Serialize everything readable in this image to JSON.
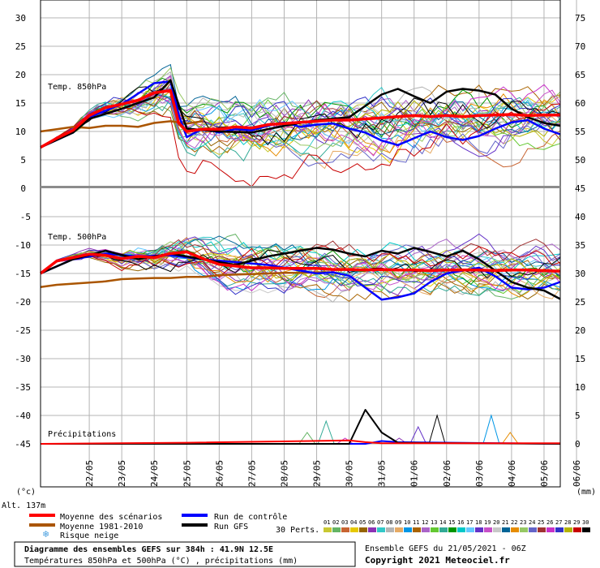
{
  "chart_data": {
    "type": "line",
    "upper_panel": {
      "title": "Temp. 850hPa",
      "left_ticks": [
        "30",
        "25",
        "20",
        "15",
        "10",
        "5",
        "0"
      ],
      "right_ticks": [
        "75",
        "70",
        "65",
        "60",
        "55",
        "50",
        "45"
      ],
      "ylim": [
        0,
        33
      ]
    },
    "lower_panel": {
      "title": "Temp. 500hPa",
      "precip_title": "Précipitations",
      "left_ticks": [
        "-5",
        "-10",
        "-15",
        "-20",
        "-25",
        "-30",
        "-35",
        "-40",
        "-45"
      ],
      "right_ticks": [
        "40",
        "35",
        "30",
        "25",
        "20",
        "15",
        "10",
        "5",
        "0"
      ],
      "ylim": [
        -50,
        0
      ]
    },
    "x_labels": [
      "22/05",
      "23/05",
      "24/05",
      "25/05",
      "26/05",
      "27/05",
      "28/05",
      "29/05",
      "30/05",
      "31/05",
      "01/06",
      "02/06",
      "03/06",
      "04/06",
      "05/06",
      "06/06"
    ],
    "x_label_hours": [
      42,
      66,
      90,
      114,
      138,
      162,
      186,
      210,
      234,
      258,
      282,
      306,
      330,
      354,
      378,
      402
    ],
    "x_range_hours": [
      6,
      390
    ],
    "unit_left": "(°c)",
    "unit_right": "(mm)",
    "altitude": "Alt. 137m",
    "series": [
      {
        "name": "Moyenne des scénarios",
        "color": "#ff0000",
        "t850": [
          [
            6,
            7.2
          ],
          [
            18,
            8.8
          ],
          [
            30,
            10.2
          ],
          [
            42,
            12.8
          ],
          [
            54,
            14.2
          ],
          [
            66,
            14.8
          ],
          [
            78,
            15.5
          ],
          [
            90,
            16.8
          ],
          [
            102,
            17.2
          ],
          [
            108,
            11.5
          ],
          [
            114,
            10.0
          ],
          [
            126,
            10.4
          ],
          [
            138,
            10.4
          ],
          [
            150,
            10.8
          ],
          [
            162,
            10.6
          ],
          [
            174,
            11.2
          ],
          [
            186,
            11.4
          ],
          [
            198,
            11.6
          ],
          [
            210,
            11.8
          ],
          [
            222,
            12.0
          ],
          [
            234,
            12.0
          ],
          [
            246,
            12.2
          ],
          [
            258,
            12.4
          ],
          [
            270,
            12.6
          ],
          [
            282,
            12.8
          ],
          [
            294,
            12.6
          ],
          [
            306,
            12.8
          ],
          [
            318,
            12.6
          ],
          [
            330,
            12.8
          ],
          [
            342,
            12.9
          ],
          [
            354,
            13.0
          ],
          [
            366,
            12.8
          ],
          [
            378,
            12.9
          ],
          [
            390,
            12.9
          ]
        ],
        "t500": [
          [
            6,
            -15.0
          ],
          [
            18,
            -12.8
          ],
          [
            30,
            -12.2
          ],
          [
            42,
            -11.6
          ],
          [
            54,
            -11.8
          ],
          [
            66,
            -12.4
          ],
          [
            78,
            -12.0
          ],
          [
            90,
            -12.2
          ],
          [
            102,
            -11.5
          ],
          [
            114,
            -11.2
          ],
          [
            126,
            -12.4
          ],
          [
            138,
            -13.4
          ],
          [
            150,
            -13.7
          ],
          [
            162,
            -14.0
          ],
          [
            174,
            -14.0
          ],
          [
            186,
            -14.1
          ],
          [
            198,
            -14.1
          ],
          [
            210,
            -14.1
          ],
          [
            222,
            -14.3
          ],
          [
            234,
            -14.3
          ],
          [
            246,
            -14.4
          ],
          [
            258,
            -14.3
          ],
          [
            270,
            -14.4
          ],
          [
            282,
            -14.4
          ],
          [
            294,
            -14.5
          ],
          [
            306,
            -14.4
          ],
          [
            318,
            -14.4
          ],
          [
            330,
            -14.4
          ],
          [
            342,
            -14.5
          ],
          [
            354,
            -14.4
          ],
          [
            366,
            -14.4
          ],
          [
            378,
            -14.5
          ],
          [
            390,
            -14.6
          ]
        ],
        "precip": [
          [
            6,
            0
          ],
          [
            114,
            0.2
          ],
          [
            234,
            0.6
          ],
          [
            246,
            0.3
          ],
          [
            258,
            0.1
          ],
          [
            390,
            0.1
          ]
        ]
      },
      {
        "name": "Moyenne 1981-2010",
        "color": "#aa5500",
        "t850": [
          [
            6,
            10.0
          ],
          [
            18,
            10.4
          ],
          [
            30,
            10.8
          ],
          [
            42,
            10.6
          ],
          [
            54,
            11.0
          ],
          [
            66,
            11.0
          ],
          [
            78,
            10.8
          ],
          [
            90,
            11.5
          ],
          [
            102,
            11.8
          ],
          [
            114,
            11.4
          ],
          [
            126,
            11.8
          ]
        ],
        "t500": [
          [
            6,
            -17.4
          ],
          [
            18,
            -17.0
          ],
          [
            30,
            -16.8
          ],
          [
            42,
            -16.6
          ],
          [
            54,
            -16.4
          ],
          [
            66,
            -16.0
          ],
          [
            78,
            -15.9
          ],
          [
            90,
            -15.8
          ],
          [
            102,
            -15.8
          ],
          [
            114,
            -15.6
          ],
          [
            126,
            -15.6
          ],
          [
            138,
            -15.3
          ],
          [
            150,
            -15.2
          ],
          [
            162,
            -15.1
          ],
          [
            174,
            -15.0
          ],
          [
            186,
            -14.9
          ],
          [
            198,
            -14.9
          ],
          [
            210,
            -14.8
          ],
          [
            222,
            -14.8
          ]
        ]
      },
      {
        "name": "Run de contrôle",
        "color": "#0000ff",
        "t850": [
          [
            6,
            7.2
          ],
          [
            30,
            9.8
          ],
          [
            42,
            12.5
          ],
          [
            66,
            14.8
          ],
          [
            90,
            18.5
          ],
          [
            102,
            18.8
          ],
          [
            108,
            13.0
          ],
          [
            114,
            9.0
          ],
          [
            126,
            10.5
          ],
          [
            138,
            9.8
          ],
          [
            150,
            10.4
          ],
          [
            162,
            10.2
          ],
          [
            174,
            11.0
          ],
          [
            186,
            11.6
          ],
          [
            198,
            10.8
          ],
          [
            210,
            11.2
          ],
          [
            222,
            11.4
          ],
          [
            234,
            10.5
          ],
          [
            246,
            9.8
          ],
          [
            258,
            8.4
          ],
          [
            270,
            7.6
          ],
          [
            282,
            8.8
          ],
          [
            294,
            10.0
          ],
          [
            306,
            9.0
          ],
          [
            318,
            8.5
          ],
          [
            330,
            9.2
          ],
          [
            342,
            10.5
          ],
          [
            354,
            11.6
          ],
          [
            366,
            12.0
          ],
          [
            378,
            10.5
          ],
          [
            390,
            9.5
          ]
        ],
        "t500": [
          [
            6,
            -15.0
          ],
          [
            30,
            -12.5
          ],
          [
            54,
            -11.5
          ],
          [
            78,
            -12.0
          ],
          [
            102,
            -11.8
          ],
          [
            126,
            -12.5
          ],
          [
            150,
            -13.0
          ],
          [
            174,
            -13.5
          ],
          [
            198,
            -14.5
          ],
          [
            210,
            -15.0
          ],
          [
            222,
            -14.8
          ],
          [
            234,
            -15.4
          ],
          [
            246,
            -17.5
          ],
          [
            258,
            -19.6
          ],
          [
            270,
            -19.2
          ],
          [
            282,
            -18.5
          ],
          [
            294,
            -16.5
          ],
          [
            306,
            -15.0
          ],
          [
            318,
            -14.5
          ],
          [
            330,
            -14.0
          ],
          [
            342,
            -15.5
          ],
          [
            354,
            -17.5
          ],
          [
            366,
            -17.8
          ],
          [
            378,
            -17.5
          ],
          [
            390,
            -16.5
          ]
        ],
        "precip": [
          [
            6,
            0
          ],
          [
            246,
            0
          ],
          [
            258,
            0.5
          ],
          [
            270,
            0.3
          ],
          [
            390,
            0
          ]
        ]
      },
      {
        "name": "Run GFS",
        "color": "#000000",
        "t850": [
          [
            6,
            7.2
          ],
          [
            30,
            9.8
          ],
          [
            42,
            12.2
          ],
          [
            66,
            14.0
          ],
          [
            90,
            16.0
          ],
          [
            102,
            19.0
          ],
          [
            114,
            10.5
          ],
          [
            138,
            10.0
          ],
          [
            162,
            9.8
          ],
          [
            186,
            11.0
          ],
          [
            210,
            12.0
          ],
          [
            234,
            12.5
          ],
          [
            246,
            14.5
          ],
          [
            258,
            16.5
          ],
          [
            270,
            17.5
          ],
          [
            282,
            16.2
          ],
          [
            294,
            15.0
          ],
          [
            306,
            17.0
          ],
          [
            318,
            17.5
          ],
          [
            330,
            17.2
          ],
          [
            342,
            16.5
          ],
          [
            354,
            14.0
          ],
          [
            366,
            12.5
          ],
          [
            378,
            11.5
          ],
          [
            390,
            11.0
          ]
        ],
        "t500": [
          [
            6,
            -15.0
          ],
          [
            30,
            -12.5
          ],
          [
            54,
            -11.0
          ],
          [
            78,
            -12.5
          ],
          [
            102,
            -11.5
          ],
          [
            126,
            -12.5
          ],
          [
            150,
            -13.5
          ],
          [
            174,
            -12.0
          ],
          [
            198,
            -11.0
          ],
          [
            210,
            -10.5
          ],
          [
            222,
            -10.8
          ],
          [
            234,
            -11.5
          ],
          [
            246,
            -12.0
          ],
          [
            258,
            -11.0
          ],
          [
            270,
            -11.5
          ],
          [
            282,
            -10.5
          ],
          [
            294,
            -11.2
          ],
          [
            306,
            -12.0
          ],
          [
            318,
            -11.0
          ],
          [
            330,
            -12.5
          ],
          [
            342,
            -14.5
          ],
          [
            354,
            -16.5
          ],
          [
            366,
            -17.5
          ],
          [
            378,
            -18.0
          ],
          [
            390,
            -19.5
          ]
        ],
        "precip": [
          [
            6,
            0
          ],
          [
            234,
            0
          ],
          [
            246,
            6.0
          ],
          [
            258,
            2.0
          ],
          [
            270,
            0.2
          ],
          [
            390,
            0
          ]
        ]
      }
    ],
    "perturbation_colors": [
      "#c8c832",
      "#64b464",
      "#c86432",
      "#e6c800",
      "#966400",
      "#8c32b4",
      "#32c8c8",
      "#b4b4b4",
      "#e6aa64",
      "#0096e6",
      "#aa6400",
      "#aa64c8",
      "#64c832",
      "#32aa96",
      "#009600",
      "#00c8c8",
      "#64c8ff",
      "#6432c8",
      "#c850c8",
      "#c8c8c8",
      "#006496",
      "#e68c00",
      "#96c864",
      "#6464c8",
      "#a03232",
      "#c832c8",
      "#3232c8",
      "#b4b400",
      "#c80000",
      "#000000"
    ],
    "perturbation_labels": [
      "01",
      "02",
      "03",
      "04",
      "05",
      "06",
      "07",
      "08",
      "09",
      "10",
      "11",
      "12",
      "13",
      "14",
      "15",
      "16",
      "17",
      "18",
      "19",
      "20",
      "21",
      "22",
      "23",
      "24",
      "25",
      "26",
      "27",
      "28",
      "29",
      "30"
    ],
    "perturbations_label": "30 Perts."
  },
  "legend": {
    "mean": "Moyenne des scénarios",
    "climo": "Moyenne 1981-2010",
    "snow": "Risque neige",
    "control": "Run de contrôle",
    "gfs": "Run GFS"
  },
  "footer": {
    "title": "Diagramme des ensembles GEFS sur 384h : 41.9N 12.5E",
    "subtitle": "Températures 850hPa et 500hPa (°C) , précipitations (mm)",
    "run_info": "Ensemble GEFS du 21/05/2021 - 06Z",
    "copyright": "Copyright 2021 Meteociel.fr"
  },
  "colors": {
    "grid": "#b4b4b4",
    "frame": "#000000",
    "separator": "#808080"
  }
}
